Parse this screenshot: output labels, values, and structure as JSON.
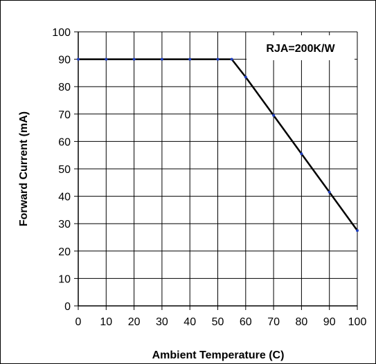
{
  "chart_data": {
    "type": "line",
    "xlabel": "Ambient Temperature (C)",
    "ylabel": "Forward Current (mA)",
    "xlim": [
      0,
      100
    ],
    "ylim": [
      0,
      100
    ],
    "x_ticks": [
      0,
      10,
      20,
      30,
      40,
      50,
      60,
      70,
      80,
      90,
      100
    ],
    "y_ticks": [
      0,
      10,
      20,
      30,
      40,
      50,
      60,
      70,
      80,
      90,
      100
    ],
    "grid": true,
    "annotation": "RJA=200K/W",
    "series": [
      {
        "x": [
          0,
          10,
          20,
          30,
          40,
          50,
          55,
          60,
          70,
          80,
          90,
          100
        ],
        "y": [
          90,
          90,
          90,
          90,
          90,
          90,
          90,
          83.5,
          69.5,
          55.5,
          41.5,
          27.5
        ],
        "color": "#000000",
        "marker_color": "#1f3fbf"
      }
    ]
  }
}
